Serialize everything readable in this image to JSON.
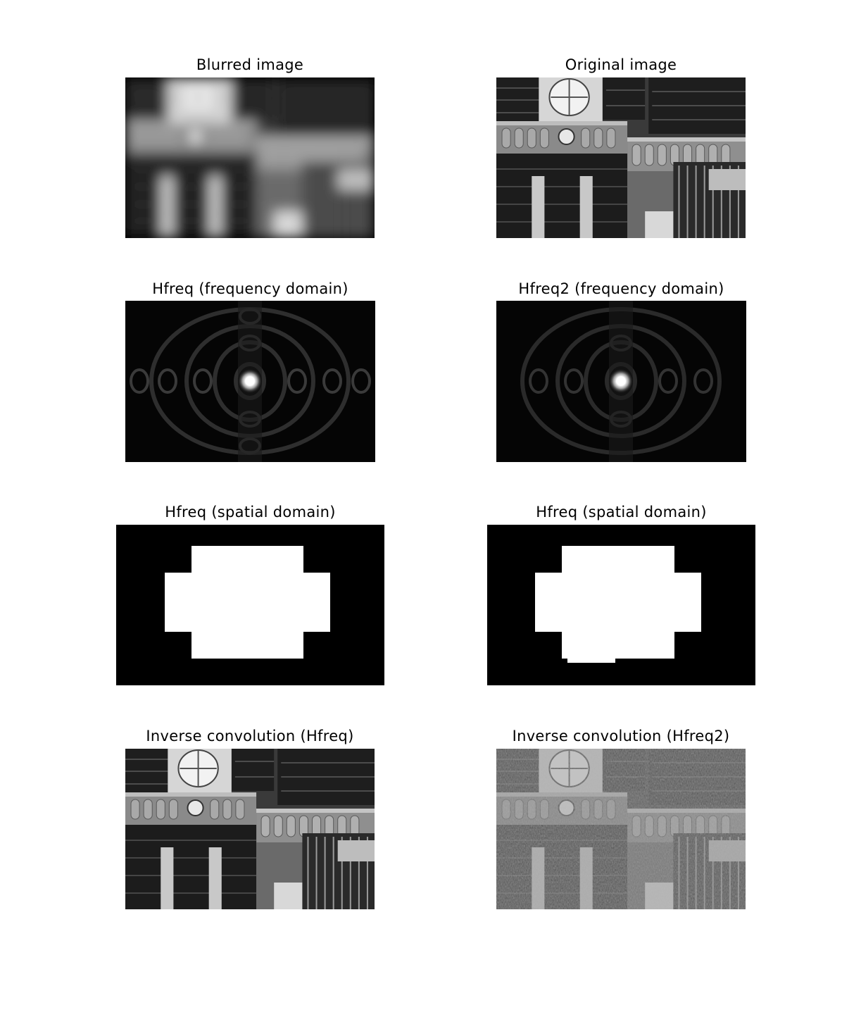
{
  "figure": {
    "panels": [
      {
        "id": "blurred",
        "title": "Blurred image"
      },
      {
        "id": "original",
        "title": "Original image"
      },
      {
        "id": "hfreq-freq",
        "title": "Hfreq (frequency domain)"
      },
      {
        "id": "hfreq2-freq",
        "title": "Hfreq2 (frequency domain)"
      },
      {
        "id": "hfreq-spatial",
        "title": "Hfreq (spatial domain)"
      },
      {
        "id": "hfreq2-spatial",
        "title": "Hfreq (spatial domain)"
      },
      {
        "id": "inv-hfreq",
        "title": "Inverse convolution (Hfreq)"
      },
      {
        "id": "inv-hfreq2",
        "title": "Inverse convolution (Hfreq2)"
      }
    ]
  }
}
